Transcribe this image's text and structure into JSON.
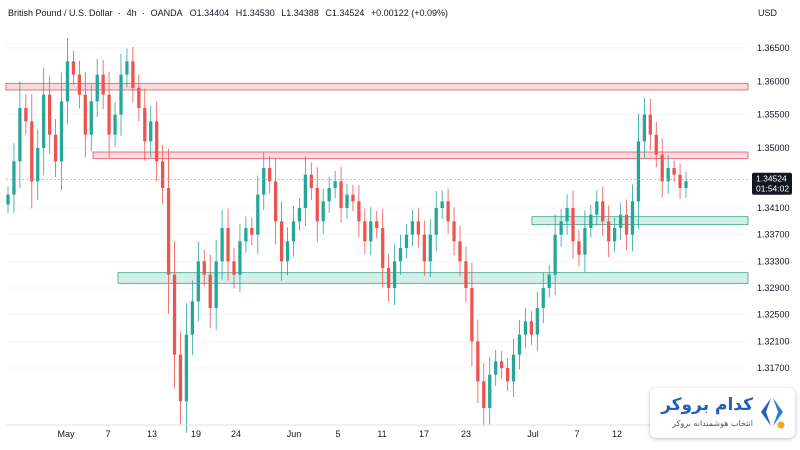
{
  "chart_data": {
    "type": "candlestick",
    "instrument": "British Pound / U.S. Dollar",
    "interval": "4h",
    "source": "OANDA",
    "ohlc": {
      "open": "O1.34404",
      "high": "H1.34530",
      "low": "L1.34388",
      "close": "C1.34524",
      "change": "+0.00122 (+0.09%)"
    },
    "currency": "USD",
    "last_price": "1.34524",
    "countdown": "01:54:02",
    "y_ticks": [
      "1.36500",
      "1.36000",
      "1.35500",
      "1.35000",
      "1.34100",
      "1.33700",
      "1.33300",
      "1.32900",
      "1.32500",
      "1.32100",
      "1.31700"
    ],
    "x_ticks": [
      "May",
      "7",
      "13",
      "19",
      "24",
      "Jun",
      "5",
      "11",
      "17",
      "23",
      "Jul",
      "7",
      "12"
    ],
    "series_close": [
      1.343,
      1.348,
      1.356,
      1.354,
      1.345,
      1.35,
      1.358,
      1.352,
      1.348,
      1.357,
      1.363,
      1.361,
      1.358,
      1.352,
      1.357,
      1.361,
      1.358,
      1.352,
      1.355,
      1.361,
      1.363,
      1.359,
      1.356,
      1.351,
      1.354,
      1.348,
      1.344,
      1.331,
      1.319,
      1.312,
      1.322,
      1.327,
      1.333,
      1.331,
      1.326,
      1.333,
      1.338,
      1.333,
      1.331,
      1.336,
      1.338,
      1.337,
      1.343,
      1.347,
      1.345,
      1.339,
      1.333,
      1.336,
      1.339,
      1.341,
      1.346,
      1.344,
      1.339,
      1.342,
      1.344,
      1.345,
      1.341,
      1.343,
      1.342,
      1.339,
      1.336,
      1.339,
      1.338,
      1.332,
      1.329,
      1.333,
      1.335,
      1.337,
      1.339,
      1.337,
      1.333,
      1.337,
      1.341,
      1.342,
      1.339,
      1.336,
      1.333,
      1.329,
      1.321,
      1.315,
      1.311,
      1.316,
      1.318,
      1.317,
      1.315,
      1.319,
      1.322,
      1.324,
      1.322,
      1.326,
      1.329,
      1.331,
      1.337,
      1.339,
      1.341,
      1.336,
      1.334,
      1.338,
      1.34,
      1.342,
      1.339,
      1.336,
      1.338,
      1.34,
      1.337,
      1.342,
      1.351,
      1.355,
      1.352,
      1.349,
      1.345,
      1.347,
      1.346,
      1.344,
      1.345
    ],
    "zones": [
      {
        "kind": "resistance",
        "low": 1.3587,
        "high": 1.3597
      },
      {
        "kind": "resistance",
        "low": 1.3484,
        "high": 1.3494
      },
      {
        "kind": "support",
        "low": 1.3385,
        "high": 1.3397
      },
      {
        "kind": "support",
        "low": 1.3297,
        "high": 1.3313
      }
    ],
    "colors": {
      "up": "#26a69a",
      "down": "#ef5350",
      "resistance_fill": "#fbd9de",
      "resistance_edge": "#e0566d",
      "support_fill": "#d4efe8",
      "support_edge": "#3aa58a",
      "last_price_bg": "#131722"
    }
  },
  "brand": {
    "name": "کدام بروکر",
    "tagline": "انتخاب هوشمندانه بروکر"
  }
}
